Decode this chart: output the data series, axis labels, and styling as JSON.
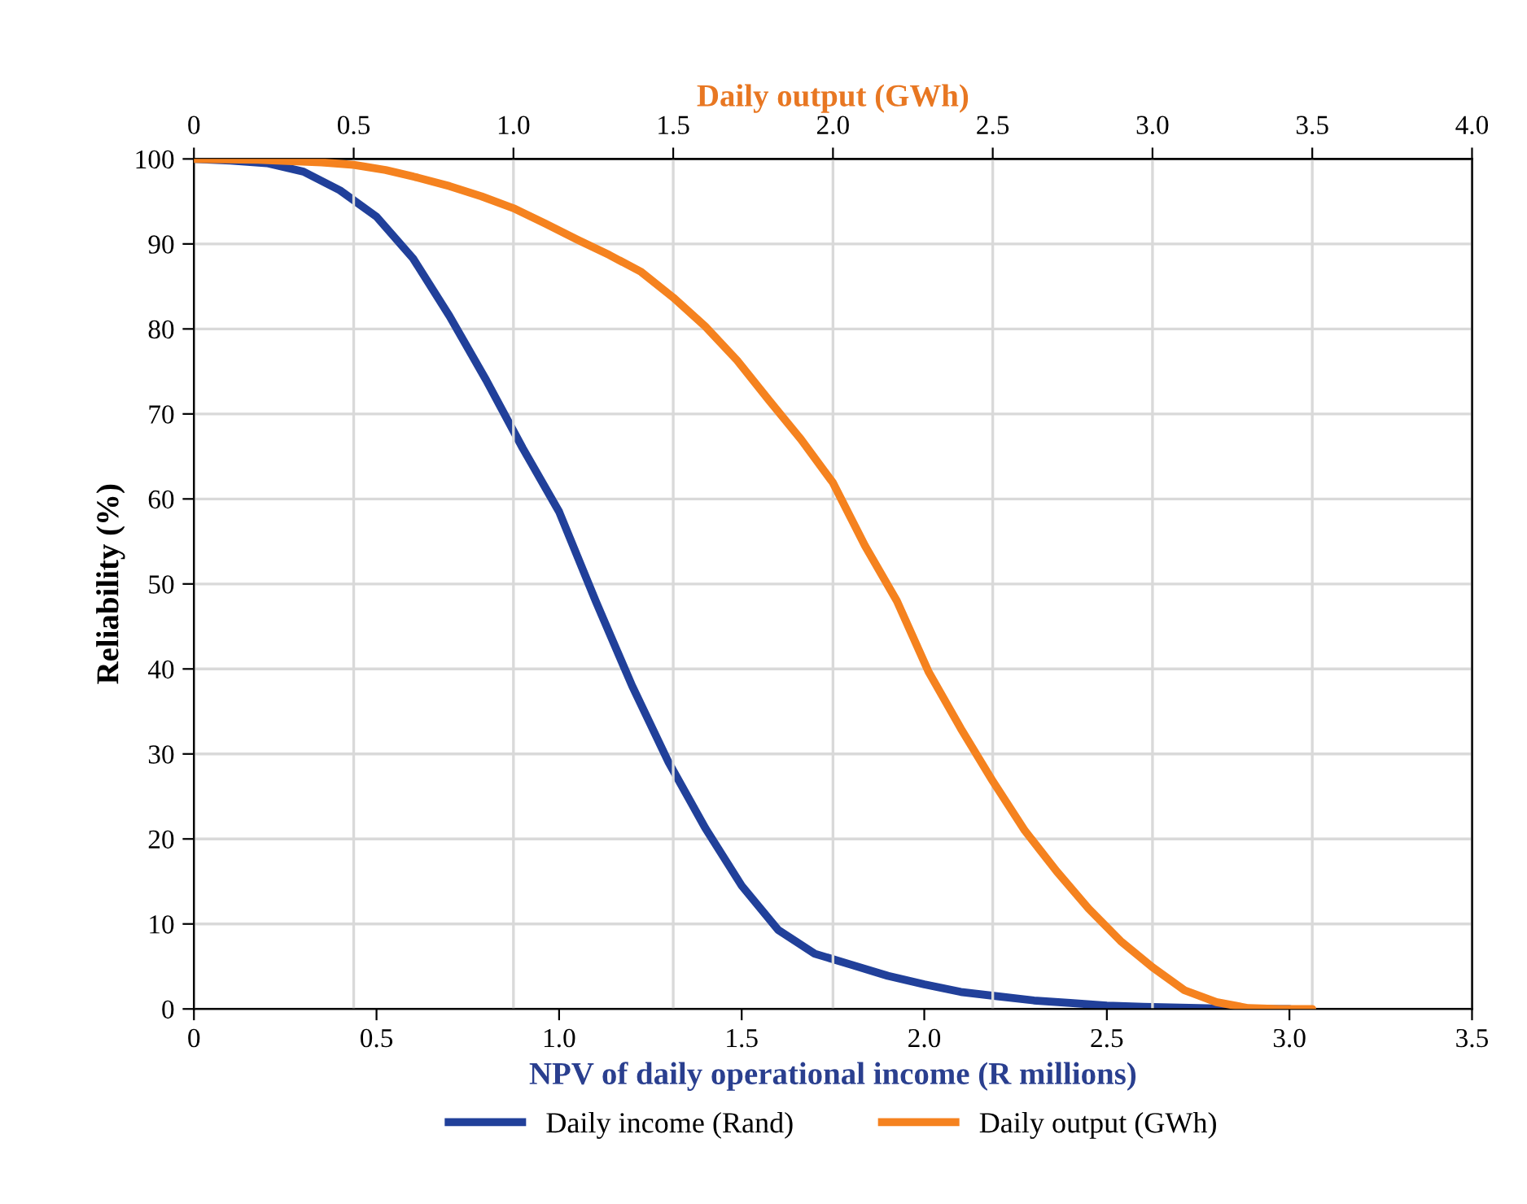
{
  "chart_data": {
    "type": "line",
    "xlabel": "NPV of daily operational income (R millions)",
    "x2label": "Daily output (GWh)",
    "ylabel": "Reliability (%)",
    "xlim": [
      0,
      3.5
    ],
    "xticks": [
      0,
      0.5,
      {
        "value": 1,
        "label": "1.0"
      },
      1.5,
      {
        "value": 2,
        "label": "2.0"
      },
      2.5,
      {
        "value": 3,
        "label": "3.0"
      },
      3.5
    ],
    "x2lim": [
      0,
      4
    ],
    "x2ticks": [
      0,
      0.5,
      {
        "value": 1,
        "label": "1.0"
      },
      1.5,
      {
        "value": 2,
        "label": "2.0"
      },
      2.5,
      {
        "value": 3,
        "label": "3.0"
      },
      3.5,
      {
        "value": 4,
        "label": "4.0"
      }
    ],
    "ylim": [
      0,
      100
    ],
    "yticks": [
      0,
      10,
      20,
      30,
      40,
      50,
      60,
      70,
      80,
      90,
      100
    ],
    "grid": true,
    "legend": "bottom",
    "line_style": "solid",
    "marker": "none",
    "series": [
      {
        "name": "Daily income (Rand)",
        "color": "#21409a",
        "x": [
          0,
          0.1,
          0.2,
          0.3,
          0.4,
          0.5,
          0.6,
          0.7,
          0.8,
          0.9,
          1.0,
          1.1,
          1.2,
          1.3,
          1.4,
          1.5,
          1.6,
          1.7,
          1.8,
          1.9,
          2.0,
          2.1,
          2.2,
          2.3,
          2.4,
          2.5,
          2.6,
          2.7,
          2.8,
          2.9,
          3.0
        ],
        "values": [
          100,
          99.8,
          99.5,
          98.5,
          96.3,
          93.2,
          88.3,
          81.5,
          74,
          66,
          58.5,
          48,
          38,
          29,
          21.3,
          14.5,
          9.3,
          6.5,
          5.2,
          3.9,
          2.9,
          2.0,
          1.5,
          1.0,
          0.7,
          0.4,
          0.25,
          0.15,
          0.05,
          0,
          0
        ]
      },
      {
        "name": "Daily output (GWh)",
        "color": "#f5821f",
        "axis": "x2",
        "x": [
          0,
          0.2,
          0.4,
          0.5,
          0.6,
          0.7,
          0.8,
          0.9,
          1.0,
          1.1,
          1.2,
          1.3,
          1.4,
          1.5,
          1.6,
          1.7,
          1.8,
          1.9,
          2.0,
          2.1,
          2.2,
          2.3,
          2.4,
          2.5,
          2.6,
          2.7,
          2.8,
          2.9,
          3.0,
          3.1,
          3.2,
          3.3,
          3.4,
          3.5
        ],
        "values": [
          100,
          99.9,
          99.6,
          99.3,
          98.7,
          97.8,
          96.8,
          95.6,
          94.2,
          92.4,
          90.5,
          88.7,
          86.7,
          83.7,
          80.3,
          76.3,
          71.6,
          67.0,
          61.9,
          54.5,
          48,
          39.6,
          33,
          26.8,
          21,
          16.2,
          11.8,
          8.0,
          4.9,
          2.2,
          0.8,
          0.1,
          0,
          0
        ]
      }
    ]
  }
}
